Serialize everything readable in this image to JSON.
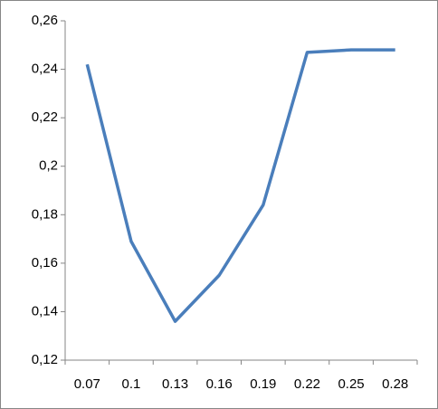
{
  "chart_data": {
    "type": "line",
    "categories": [
      "0.07",
      "0.1",
      "0.13",
      "0.16",
      "0.19",
      "0.22",
      "0.25",
      "0.28"
    ],
    "series": [
      {
        "color": "#4a7ebb",
        "values": [
          0.242,
          0.169,
          0.136,
          0.155,
          0.184,
          0.247,
          0.248,
          0.248
        ]
      }
    ],
    "ylim": [
      0.12,
      0.26
    ],
    "yticks": [
      {
        "value": 0.12,
        "label": "0,12"
      },
      {
        "value": 0.14,
        "label": "0,14"
      },
      {
        "value": 0.16,
        "label": "0,16"
      },
      {
        "value": 0.18,
        "label": "0,18"
      },
      {
        "value": 0.2,
        "label": "0,2"
      },
      {
        "value": 0.22,
        "label": "0,22"
      },
      {
        "value": 0.24,
        "label": "0,24"
      },
      {
        "value": 0.26,
        "label": "0,26"
      }
    ],
    "grid": false
  }
}
